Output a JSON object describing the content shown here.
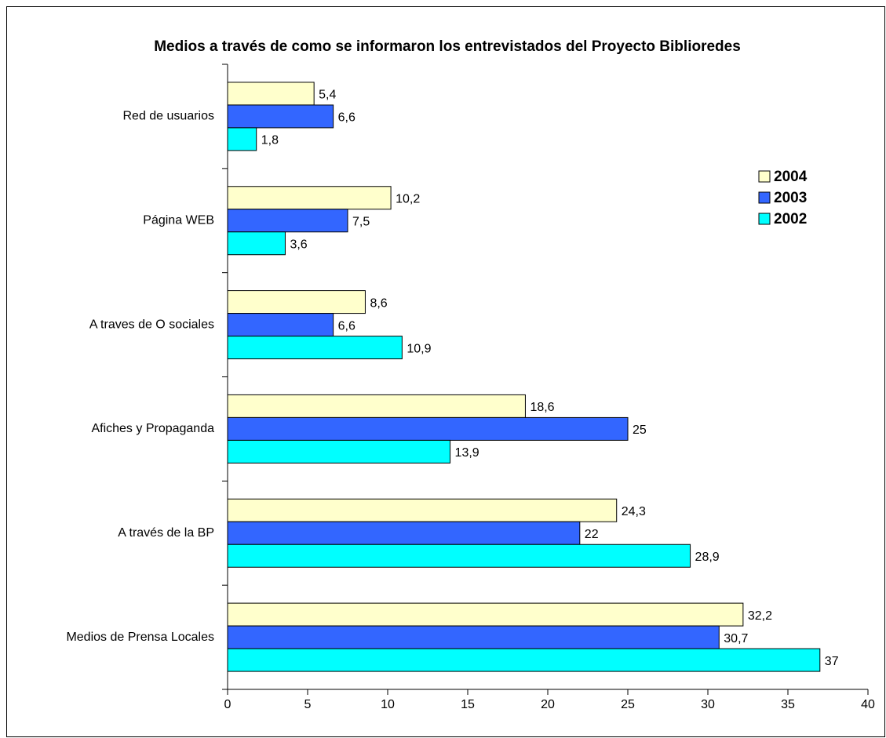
{
  "chart_data": {
    "type": "bar",
    "orientation": "horizontal",
    "title": "Medios a través de como se informaron los entrevistados del Proyecto Biblioredes",
    "categories": [
      "Red de usuarios",
      "Página WEB",
      "A traves de O sociales",
      "Afiches y Propaganda",
      "A través de la BP",
      "Medios de Prensa Locales"
    ],
    "series": [
      {
        "name": "2004",
        "color": "#ffffcc",
        "values": [
          5.4,
          10.2,
          8.6,
          18.6,
          24.3,
          32.2
        ],
        "value_labels": [
          "5,4",
          "10,2",
          "8,6",
          "18,6",
          "24,3",
          "32,2"
        ]
      },
      {
        "name": "2003",
        "color": "#3366ff",
        "values": [
          6.6,
          7.5,
          6.6,
          25,
          22,
          30.7
        ],
        "value_labels": [
          "6,6",
          "7,5",
          "6,6",
          "25",
          "22",
          "30,7"
        ]
      },
      {
        "name": "2002",
        "color": "#00ffff",
        "values": [
          1.8,
          3.6,
          10.9,
          13.9,
          28.9,
          37
        ],
        "value_labels": [
          "1,8",
          "3,6",
          "10,9",
          "13,9",
          "28,9",
          "37"
        ]
      }
    ],
    "xlim": [
      0,
      40
    ],
    "xticks": [
      0,
      5,
      10,
      15,
      20,
      25,
      30,
      35,
      40
    ],
    "legend": "right"
  }
}
